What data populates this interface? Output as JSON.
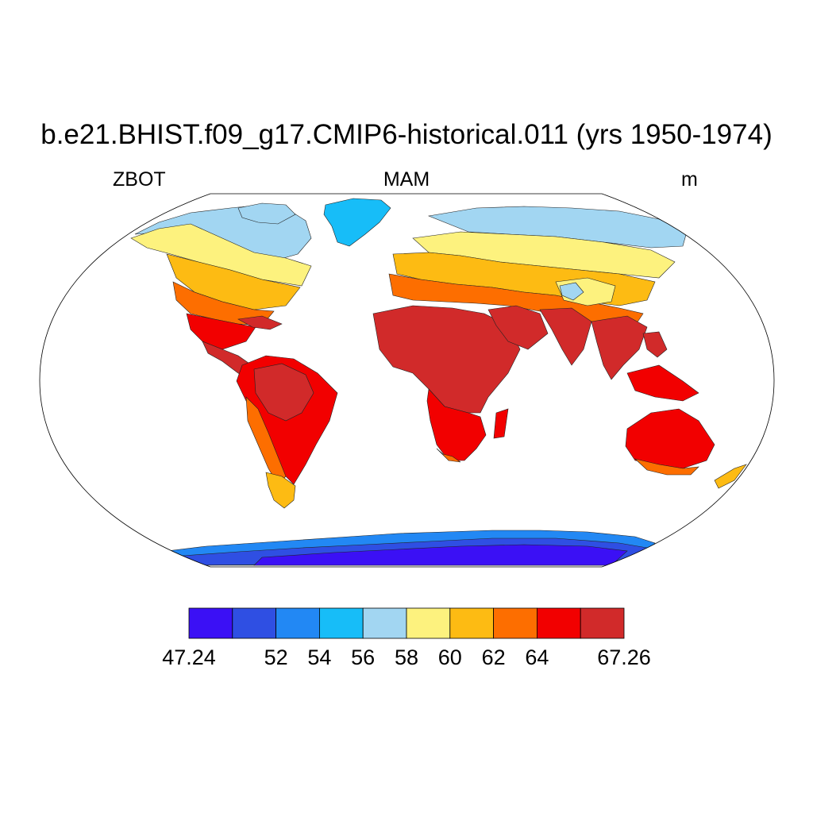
{
  "title": "b.e21.BHIST.f09_g17.CMIP6-historical.011 (yrs 1950-1974)",
  "subtitle_left": "ZBOT",
  "subtitle_center": "MAM",
  "subtitle_right": "m",
  "colorbar": {
    "colors": [
      "#3b10f5",
      "#2f4fe3",
      "#2288f4",
      "#17bdf8",
      "#a2d6f2",
      "#fdf27e",
      "#fdbb13",
      "#fd6e00",
      "#f20000",
      "#d12a2a"
    ],
    "labels": [
      {
        "text": "47.24",
        "index": 0
      },
      {
        "text": "52",
        "index": 2
      },
      {
        "text": "54",
        "index": 3
      },
      {
        "text": "56",
        "index": 4
      },
      {
        "text": "58",
        "index": 5
      },
      {
        "text": "60",
        "index": 6
      },
      {
        "text": "62",
        "index": 7
      },
      {
        "text": "64",
        "index": 8
      },
      {
        "text": "67.26",
        "index": 10
      }
    ]
  }
}
